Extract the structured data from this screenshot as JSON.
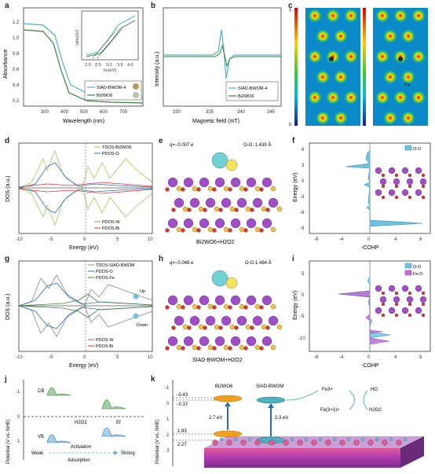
{
  "colors": {
    "teal": "#4fb3bf",
    "green": "#3f7f3a",
    "gray": "#555555",
    "blue": "#2b6cb0",
    "red": "#d33",
    "purple": "#a35bd0",
    "lightblue": "#6fc2e0",
    "magenta": "#b044c8",
    "orange": "#f0a020"
  },
  "panels": {
    "a": {
      "label": "a",
      "ylabel": "Absorbance",
      "xlabel": "Wavelength (nm)",
      "xticks": [
        "300",
        "400",
        "500",
        "600",
        "700"
      ],
      "yticks": [
        "0.2",
        "0.4",
        "0.6",
        "0.8",
        "1.0",
        "1.2"
      ],
      "inset": {
        "ylabel": "(αhν)1/2",
        "xlabel": "hν(eV)",
        "xticks": [
          "2.0",
          "2.5",
          "3.0",
          "3.5",
          "4.0"
        ]
      },
      "legend": [
        "SIAD-BWOM-4",
        "Bi2WO6"
      ]
    },
    "b": {
      "label": "b",
      "ylabel": "Intensity (a.u.)",
      "xlabel": "Magnetic field (mT)",
      "xticks": [
        "330",
        "335",
        "340",
        "345"
      ],
      "legend": [
        "SIAD-BWOM-4",
        "Bi2WO6"
      ]
    },
    "c": {
      "label": "c",
      "scale_top": "1",
      "scale_bottom": "0",
      "fe_label": "Fe"
    },
    "d": {
      "label": "d",
      "ylabel": "DOS (a.u.)",
      "xlabel": "Energy (eV)",
      "xticks": [
        "-10",
        "-5",
        "0",
        "5",
        "10"
      ],
      "legend_top": [
        "TDOS-Bi2WO6",
        "PDOS-O"
      ],
      "legend_bottom": [
        "PDOS-W",
        "PDOS-Bi"
      ]
    },
    "e": {
      "label": "e",
      "charge": "q=−0.007 e",
      "bond": "O-O: 1.439 Å",
      "caption": "Bi2WO6+H2O2"
    },
    "f": {
      "label": "f",
      "ylabel": "Energy (eV)",
      "xlabel": "-COHP",
      "xticks": [
        "-8",
        "-4",
        "0",
        "4",
        "8"
      ],
      "yticks": [
        "6",
        "3",
        "0",
        "-3",
        "-6",
        "-9"
      ],
      "legend": [
        "O-O"
      ]
    },
    "g": {
      "label": "g",
      "ylabel": "DOS (a.u.)",
      "xlabel": "Energy (eV)",
      "xticks": [
        "-10",
        "-5",
        "0",
        "5",
        "10"
      ],
      "legend_top": [
        "TDOS-SIAD-BWOM",
        "PDOS-O",
        "PDOS-Fe"
      ],
      "legend_bottom": [
        "PDOS-W",
        "PDOS-Bi"
      ],
      "up": "Up",
      "down": "Down"
    },
    "h": {
      "label": "h",
      "charge": "q=−0.048 e",
      "bond": "O-O:1.484 Å",
      "caption": "SIAD-BWOM+H2O2"
    },
    "i": {
      "label": "i",
      "ylabel": "Energy (eV)",
      "xlabel": "-COHP",
      "xticks": [
        "-8",
        "-4",
        "0",
        "4",
        "8"
      ],
      "yticks": [
        "5",
        "0",
        "-5",
        "-10"
      ],
      "legend": [
        "O-O",
        "Fe-O"
      ]
    },
    "j": {
      "label": "j",
      "ylabel": "Potential (V vs. NHE)",
      "cb": "CB",
      "vb": "VB",
      "h2o2": "H2O2",
      "ef": "Ef",
      "yticks": [
        "-1",
        "0",
        "1"
      ],
      "activation": "Activation",
      "weak": "Weak",
      "strong": "Strong",
      "adsorption": "Adsorption"
    },
    "k": {
      "label": "k",
      "ylabel": "Potential (V vs. NHE)",
      "yticks": [
        "-1",
        "0",
        "1",
        "2",
        "3"
      ],
      "bi2wo6": "Bi2WO6",
      "siad": "SIAD-BWOM",
      "v1": "−0.43",
      "v2": "−0.37",
      "v3": "1.93",
      "v4": "2.27",
      "gap1": "2.7 eV",
      "gap2": "2.3 eV",
      "fe3": "Fe3+",
      "fe2": "Fe(3+1)+",
      "ho": "HO",
      "h2o2": "H2O2"
    }
  }
}
